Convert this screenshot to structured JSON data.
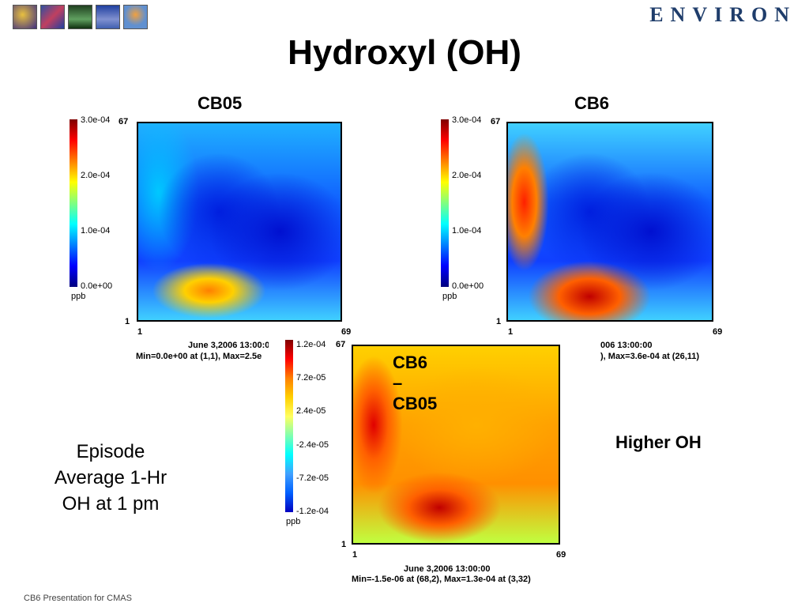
{
  "brand": "ENVIRON",
  "title": "Hydroxyl (OH)",
  "panels": {
    "cb05": {
      "label": "CB05",
      "ticks": [
        "3.0e-04",
        "2.0e-04",
        "1.0e-04",
        "0.0e+00"
      ],
      "unit": "ppb",
      "y_top": "67",
      "y_bottom": "1",
      "x_left": "1",
      "x_right": "69",
      "caption1": "June 3,2006 13:00:0",
      "caption2": "Min=0.0e+00 at (1,1), Max=2.5e"
    },
    "cb6": {
      "label": "CB6",
      "ticks": [
        "3.0e-04",
        "2.0e-04",
        "1.0e-04",
        "0.0e+00"
      ],
      "unit": "ppb",
      "y_top": "67",
      "y_bottom": "1",
      "x_left": "1",
      "x_right": "69",
      "caption1": "006 13:00:00",
      "caption2": "), Max=3.6e-04 at (26,11)"
    },
    "diff": {
      "label": "CB6 – CB05",
      "ticks": [
        "1.2e-04",
        "7.2e-05",
        "2.4e-05",
        "-2.4e-05",
        "-7.2e-05",
        "-1.2e-04"
      ],
      "unit": "ppb",
      "y_top": "67",
      "y_bottom": "1",
      "x_left": "1",
      "x_right": "69",
      "caption1": "June 3,2006 13:00:00",
      "caption2": "Min=-1.5e-06 at (68,2), Max=1.3e-04 at (3,32)"
    }
  },
  "side_text": [
    "Episode",
    "Average 1-Hr",
    "OH at  1 pm"
  ],
  "higher_oh": "Higher OH",
  "footer": "CB6 Presentation for CMAS"
}
